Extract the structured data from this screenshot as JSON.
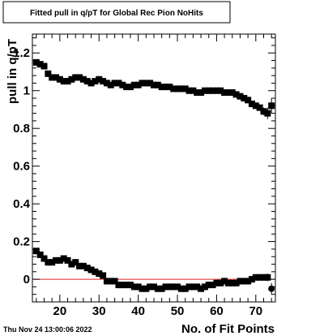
{
  "chart_data": {
    "type": "scatter",
    "title": "Fitted pull in q/pT for Global Rec Pion NoHits",
    "xlabel": "No. of Fit Points",
    "ylabel": "pull in q/pT",
    "timestamp": "Thu Nov 24 13:00:06 2022",
    "xlim": [
      13,
      75
    ],
    "ylim": [
      -0.12,
      1.3
    ],
    "x_ticks": [
      20,
      30,
      40,
      50,
      60,
      70
    ],
    "y_ticks": [
      0,
      0.2,
      0.4,
      0.6,
      0.8,
      1,
      1.2
    ],
    "y_tick_labels": [
      "0",
      "0.2",
      "0.4",
      "0.6",
      "0.8",
      "1",
      "1.2"
    ],
    "reference_line": {
      "y": 0,
      "color": "#e02020"
    },
    "marker_color": "#000000",
    "series": [
      {
        "x": [
          14,
          15,
          16,
          17,
          18,
          19,
          20,
          21,
          22,
          23,
          24,
          25,
          26,
          27,
          28,
          29,
          30,
          31,
          32,
          33,
          34,
          35,
          36,
          37,
          38,
          39,
          40,
          41,
          42,
          43,
          44,
          45,
          46,
          47,
          48,
          49,
          50,
          51,
          52,
          53,
          54,
          55,
          56,
          57,
          58,
          59,
          60,
          61,
          62,
          63,
          64,
          65,
          66,
          67,
          68,
          69,
          70,
          71,
          72,
          73,
          74
        ],
        "y": [
          1.15,
          1.14,
          1.13,
          1.09,
          1.07,
          1.07,
          1.06,
          1.05,
          1.05,
          1.06,
          1.07,
          1.07,
          1.06,
          1.05,
          1.04,
          1.05,
          1.06,
          1.05,
          1.04,
          1.03,
          1.04,
          1.04,
          1.03,
          1.02,
          1.02,
          1.03,
          1.03,
          1.04,
          1.04,
          1.04,
          1.03,
          1.03,
          1.02,
          1.02,
          1.02,
          1.01,
          1.01,
          1.01,
          1.01,
          1.0,
          1.0,
          0.99,
          0.99,
          1.0,
          1.0,
          1.0,
          1.0,
          1.0,
          0.99,
          0.99,
          0.99,
          0.98,
          0.97,
          0.96,
          0.95,
          0.93,
          0.92,
          0.91,
          0.89,
          0.88,
          0.92
        ],
        "err": [
          0,
          0,
          0,
          0,
          0,
          0,
          0,
          0,
          0,
          0,
          0,
          0,
          0,
          0,
          0,
          0,
          0,
          0,
          0,
          0,
          0,
          0,
          0,
          0,
          0,
          0,
          0,
          0,
          0,
          0,
          0,
          0,
          0,
          0,
          0,
          0,
          0,
          0,
          0,
          0,
          0,
          0,
          0,
          0,
          0,
          0,
          0,
          0,
          0,
          0,
          0,
          0,
          0,
          0,
          0,
          0,
          0,
          0.015,
          0.02,
          0.03,
          0.04
        ]
      },
      {
        "x": [
          14,
          15,
          16,
          17,
          18,
          19,
          20,
          21,
          22,
          23,
          24,
          25,
          26,
          27,
          28,
          29,
          30,
          31,
          32,
          33,
          34,
          35,
          36,
          37,
          38,
          39,
          40,
          41,
          42,
          43,
          44,
          45,
          46,
          47,
          48,
          49,
          50,
          51,
          52,
          53,
          54,
          55,
          56,
          57,
          58,
          59,
          60,
          61,
          62,
          63,
          64,
          65,
          66,
          67,
          68,
          69,
          70,
          71,
          72,
          73,
          74
        ],
        "y": [
          0.15,
          0.13,
          0.11,
          0.09,
          0.09,
          0.1,
          0.1,
          0.11,
          0.1,
          0.08,
          0.09,
          0.07,
          0.07,
          0.06,
          0.05,
          0.04,
          0.03,
          0.02,
          -0.01,
          -0.01,
          -0.01,
          -0.03,
          -0.03,
          -0.03,
          -0.03,
          -0.04,
          -0.04,
          -0.05,
          -0.05,
          -0.04,
          -0.04,
          -0.05,
          -0.05,
          -0.04,
          -0.04,
          -0.04,
          -0.04,
          -0.05,
          -0.05,
          -0.04,
          -0.04,
          -0.04,
          -0.05,
          -0.04,
          -0.03,
          -0.03,
          -0.02,
          -0.02,
          -0.01,
          -0.02,
          -0.02,
          -0.02,
          -0.01,
          -0.01,
          -0.01,
          0.0,
          0.01,
          0.01,
          0.01,
          0.01,
          -0.05
        ],
        "err": [
          0,
          0,
          0,
          0,
          0,
          0,
          0,
          0,
          0,
          0,
          0,
          0,
          0,
          0,
          0,
          0,
          0,
          0,
          0,
          0,
          0,
          0,
          0,
          0,
          0,
          0,
          0,
          0,
          0,
          0,
          0,
          0,
          0,
          0,
          0,
          0,
          0,
          0,
          0,
          0,
          0,
          0,
          0,
          0,
          0,
          0,
          0,
          0,
          0,
          0,
          0,
          0,
          0,
          0,
          0,
          0,
          0,
          0.01,
          0.015,
          0.02,
          0.03
        ]
      }
    ]
  }
}
